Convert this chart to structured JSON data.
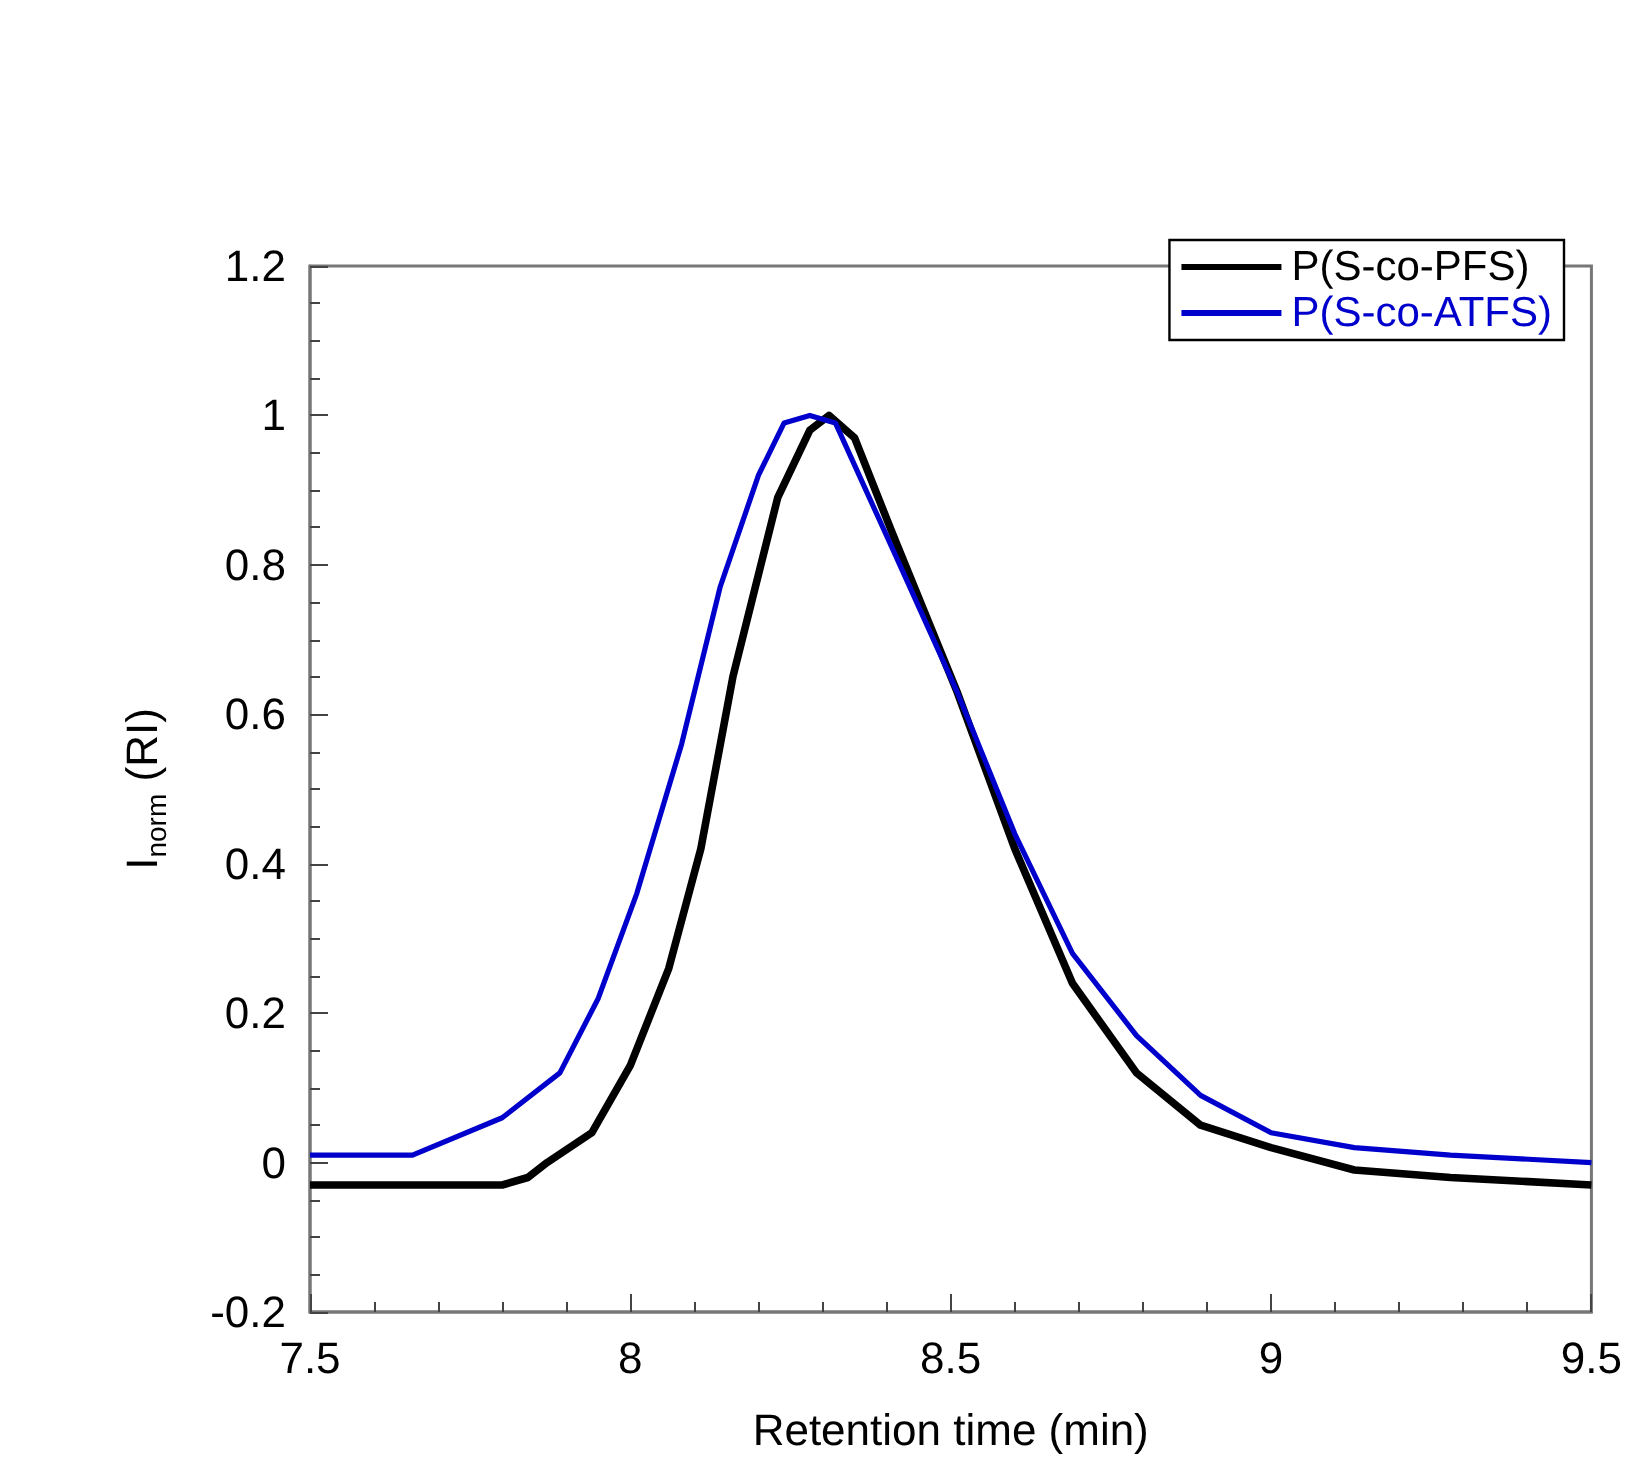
{
  "chart_data": {
    "type": "line",
    "xlabel": "Retention time (min)",
    "ylabel": "I$_{norm}$ (RI)",
    "xlim": [
      7.5,
      9.5
    ],
    "xticks": [
      7.5,
      8,
      8.5,
      9,
      9.5
    ],
    "ylim": [
      -0.2,
      1.2
    ],
    "yticks": [
      -0.2,
      0,
      0.2,
      0.4,
      0.6,
      0.8,
      1,
      1.2
    ],
    "grid": false,
    "legend": "top right",
    "marker": "none",
    "line_style": "solid",
    "series": [
      {
        "name": "P(S-co-PFS)",
        "color": "#000000",
        "x": [
          7.5,
          7.66,
          7.8,
          7.84,
          7.87,
          7.94,
          8.0,
          8.06,
          8.11,
          8.16,
          8.23,
          8.28,
          8.31,
          8.35,
          8.41,
          8.51,
          8.6,
          8.69,
          8.79,
          8.89,
          9.0,
          9.13,
          9.28,
          9.5
        ],
        "values": [
          -0.03,
          -0.03,
          -0.03,
          -0.02,
          0,
          0.04,
          0.13,
          0.26,
          0.42,
          0.65,
          0.89,
          0.98,
          1.0,
          0.97,
          0.84,
          0.63,
          0.42,
          0.24,
          0.12,
          0.05,
          0.02,
          -0.01,
          -0.02,
          -0.03
        ]
      },
      {
        "name": "P(S-co-ATFS)",
        "color": "#0000cc",
        "x": [
          7.5,
          7.66,
          7.8,
          7.89,
          7.95,
          8.01,
          8.08,
          8.14,
          8.2,
          8.24,
          8.28,
          8.32,
          8.41,
          8.51,
          8.6,
          8.69,
          8.79,
          8.89,
          9.0,
          9.13,
          9.28,
          9.5
        ],
        "values": [
          0.01,
          0.01,
          0.06,
          0.12,
          0.22,
          0.36,
          0.56,
          0.77,
          0.92,
          0.99,
          1.0,
          0.99,
          0.82,
          0.63,
          0.44,
          0.28,
          0.17,
          0.09,
          0.04,
          0.02,
          0.01,
          0
        ]
      }
    ]
  }
}
